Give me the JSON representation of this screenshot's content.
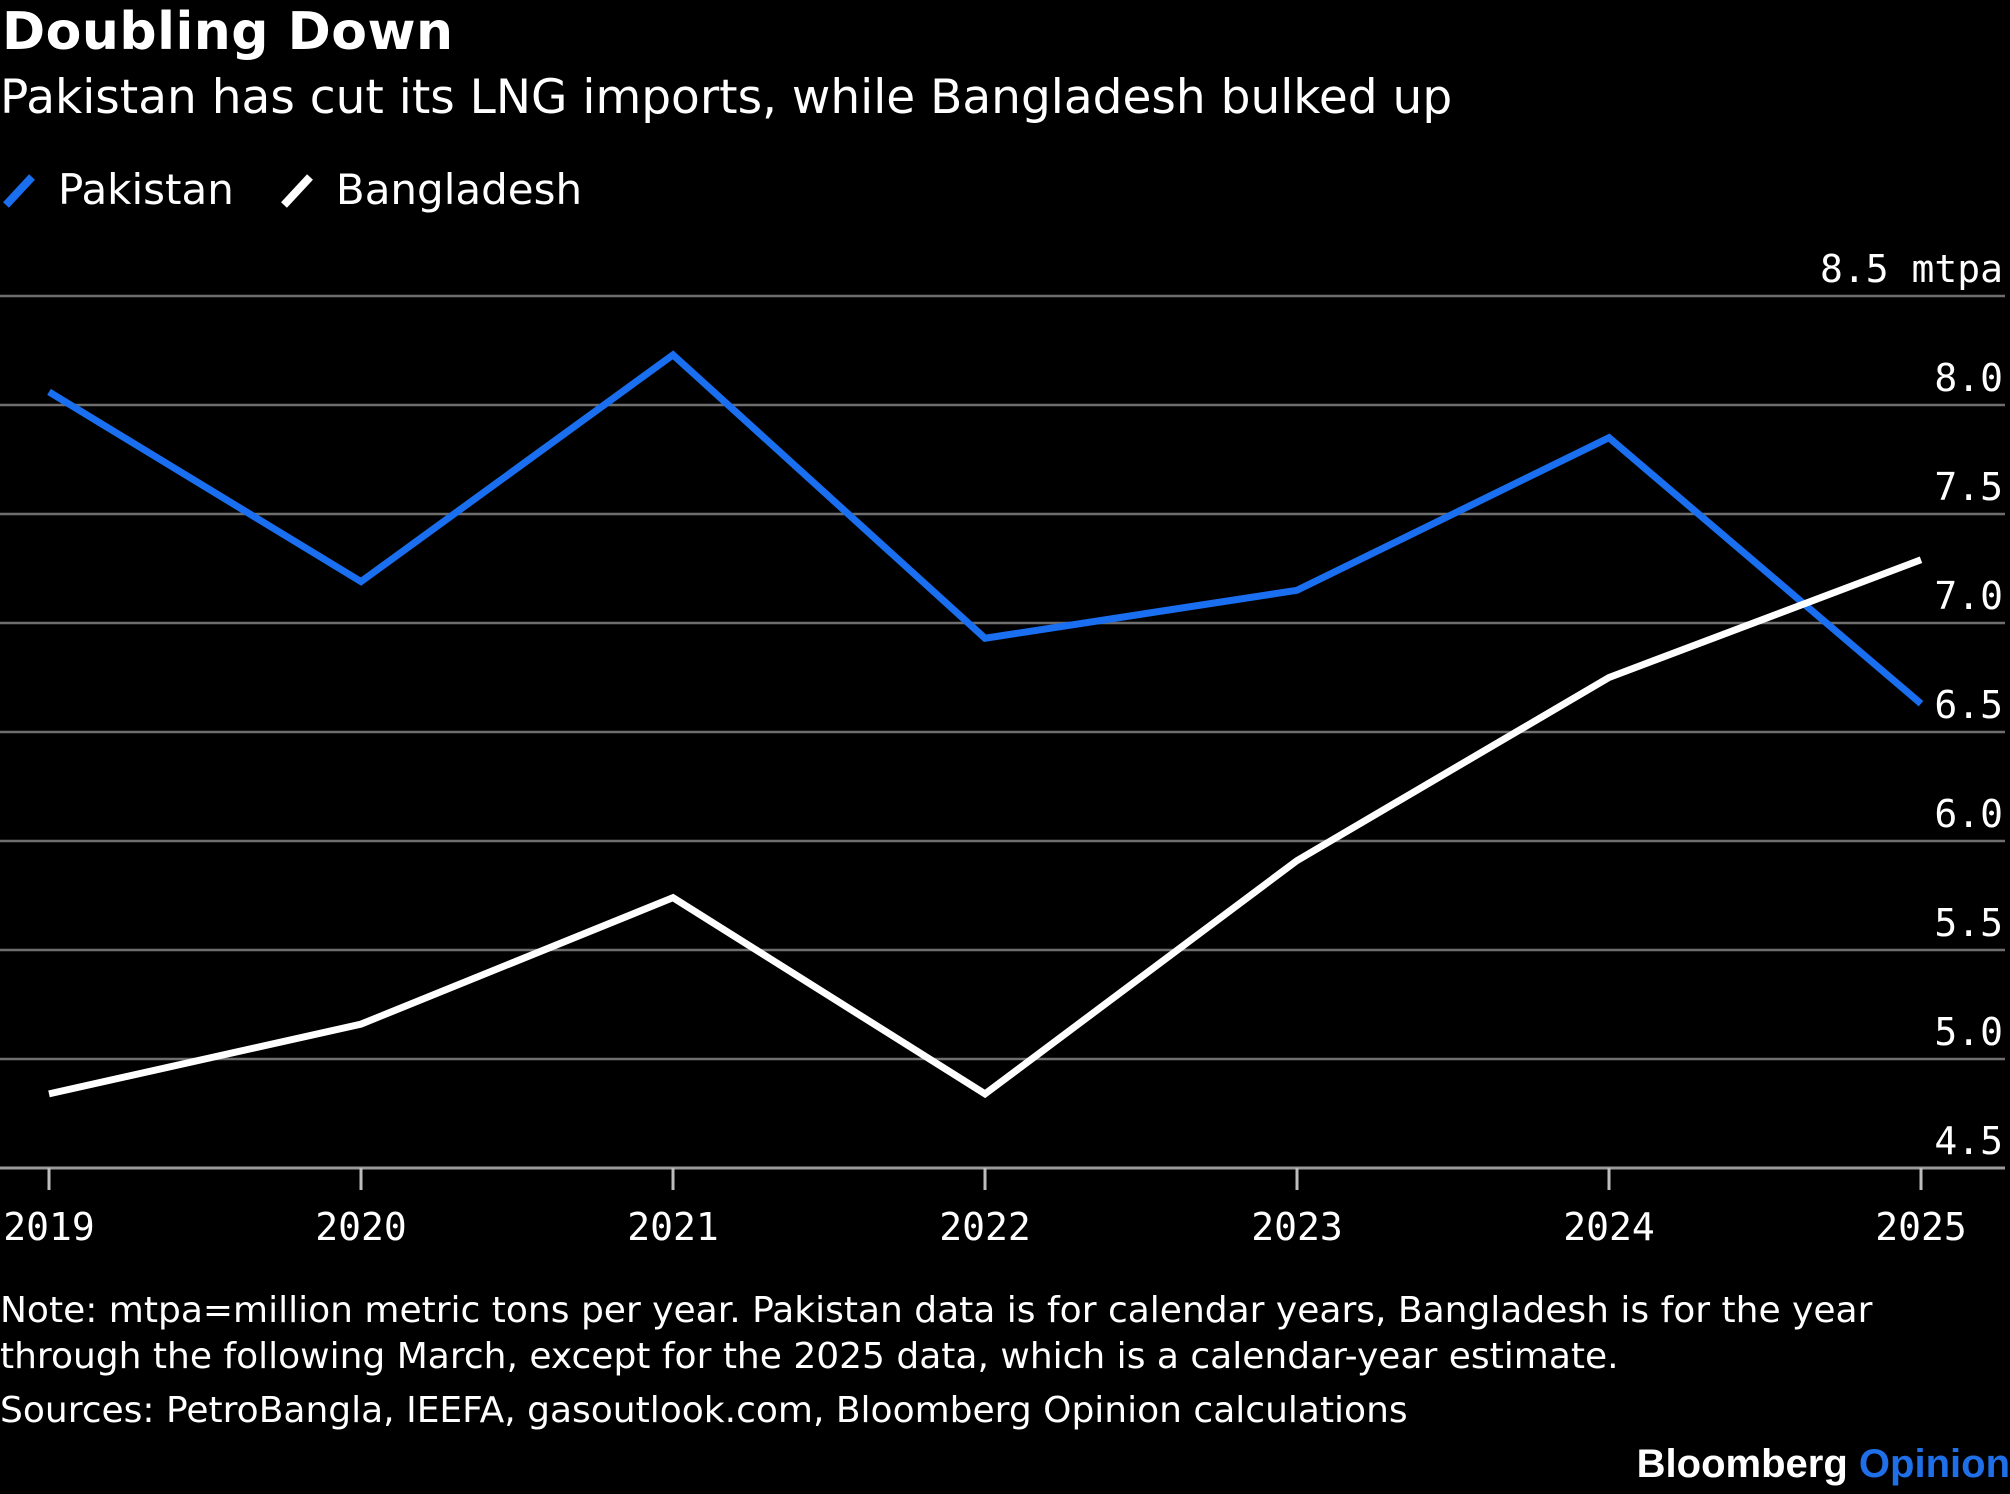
{
  "title": "Doubling Down",
  "subtitle": "Pakistan has cut its LNG imports, while Bangladesh bulked up",
  "legend": [
    {
      "label": "Pakistan",
      "color": "#1a6ef0"
    },
    {
      "label": "Bangladesh",
      "color": "#ffffff"
    }
  ],
  "chart_data": {
    "type": "line",
    "x": [
      "2019",
      "2020",
      "2021",
      "2022",
      "2023",
      "2024",
      "2025"
    ],
    "series": [
      {
        "name": "Pakistan",
        "color": "#1a6ef0",
        "values": [
          8.06,
          7.19,
          8.23,
          6.93,
          7.15,
          7.85,
          6.63
        ]
      },
      {
        "name": "Bangladesh",
        "color": "#ffffff",
        "values": [
          4.84,
          5.16,
          5.74,
          4.84,
          5.91,
          6.75,
          7.29
        ]
      }
    ],
    "y_ticks": [
      "8.5 mtpa",
      "8.0",
      "7.5",
      "7.0",
      "6.5",
      "6.0",
      "5.5",
      "5.0",
      "4.5"
    ],
    "ylim": [
      4.5,
      8.5
    ],
    "grid": true,
    "y_axis_side": "right",
    "legend_position": "top-left"
  },
  "note": "Note: mtpa=million metric tons per year. Pakistan data is for calendar years, Bangladesh is for the year through the following March, except for the 2025 data, which is a calendar-year estimate.",
  "sources": "Sources: PetroBangla, IEEFA, gasoutlook.com, Bloomberg Opinion calculations",
  "brand": {
    "name": "Bloomberg",
    "section": "Opinion"
  }
}
